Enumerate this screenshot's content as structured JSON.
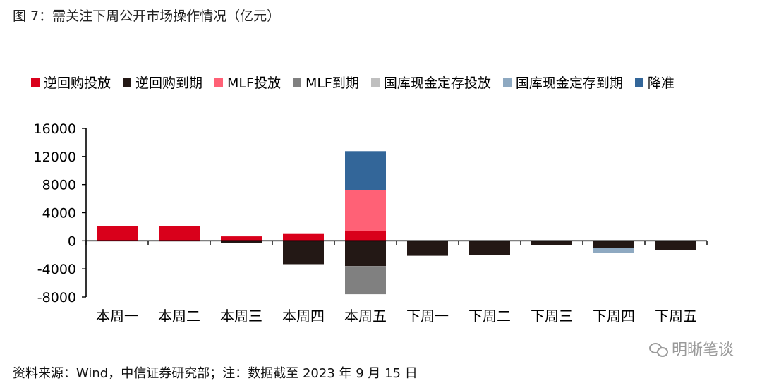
{
  "header": {
    "title": "图 7：需关注下周公开市场操作情况（亿元）"
  },
  "footer": {
    "source": "资料来源：Wind，中信证券研究部；注：数据截至 2023 年 9 月 15 日",
    "watermark": "明晰笔谈",
    "watermark_icon": "wechat-icon"
  },
  "chart_data": {
    "type": "bar",
    "stacked": true,
    "categories": [
      "本周一",
      "本周二",
      "本周三",
      "本周四",
      "本周五",
      "下周一",
      "下周二",
      "下周三",
      "下周四",
      "下周五"
    ],
    "series": [
      {
        "name": "逆回购投放",
        "color": "#d9001b",
        "values": [
          2140,
          2040,
          630,
          1070,
          1350,
          0,
          0,
          0,
          0,
          0
        ]
      },
      {
        "name": "逆回购到期",
        "color": "#231815",
        "values": [
          0,
          -70,
          -350,
          -3330,
          -3610,
          -2140,
          -2040,
          -630,
          -1070,
          -1350
        ]
      },
      {
        "name": "MLF投放",
        "color": "#ff6176",
        "values": [
          0,
          0,
          0,
          0,
          5910,
          0,
          0,
          0,
          0,
          0
        ]
      },
      {
        "name": "MLF到期",
        "color": "#808080",
        "values": [
          0,
          0,
          0,
          0,
          -4000,
          0,
          0,
          0,
          0,
          0
        ]
      },
      {
        "name": "国库现金定存投放",
        "color": "#bfbfbf",
        "values": [
          0,
          0,
          0,
          0,
          0,
          0,
          0,
          0,
          0,
          0
        ]
      },
      {
        "name": "国库现金定存到期",
        "color": "#8ea9c1",
        "values": [
          0,
          0,
          0,
          0,
          0,
          0,
          0,
          0,
          -600,
          0
        ]
      },
      {
        "name": "降准",
        "color": "#336699",
        "values": [
          0,
          0,
          0,
          0,
          5500,
          0,
          0,
          0,
          0,
          0
        ]
      }
    ],
    "ylim": [
      -8000,
      16000
    ],
    "yticks": [
      "16000",
      "12000",
      "8000",
      "4000",
      "0",
      "-4000",
      "-8000"
    ],
    "ytick_values": [
      16000,
      12000,
      8000,
      4000,
      0,
      -4000,
      -8000
    ],
    "grid": false,
    "legend_position": "top"
  }
}
